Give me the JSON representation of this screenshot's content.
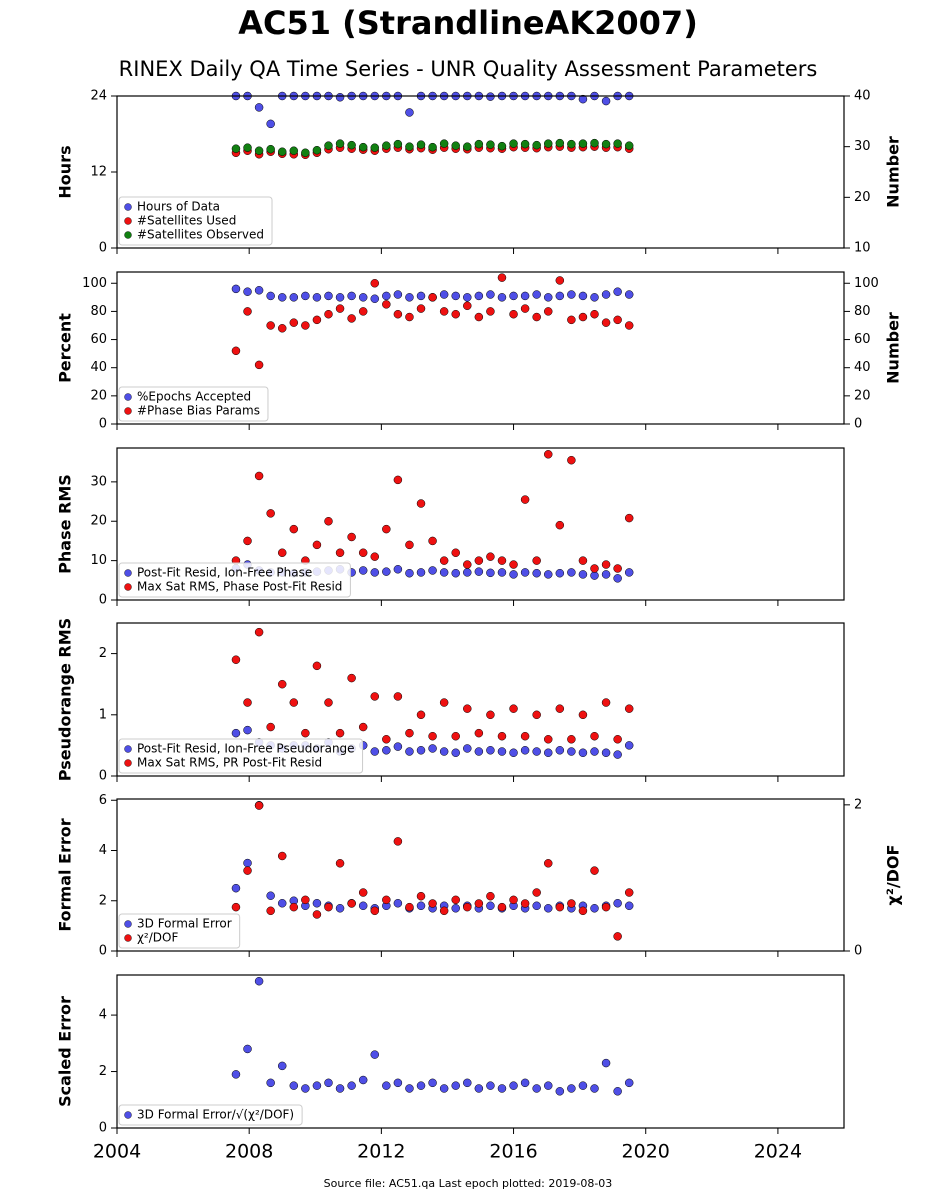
{
  "title": "AC51 (StrandlineAK2007)",
  "subtitle": "RINEX Daily QA Time Series - UNR Quality Assessment Parameters",
  "source": "Source file: AC51.qa Last epoch plotted: 2019-08-03",
  "chart_data": [
    {
      "type": "scatter",
      "ylabel": "Hours",
      "y2label": "Number",
      "legend": "lower left",
      "xlim": [
        2004,
        2026
      ],
      "xticks": [
        2004,
        2008,
        2012,
        2016,
        2020,
        2024
      ],
      "ylim": [
        0,
        24
      ],
      "yticks": [
        0,
        12,
        24
      ],
      "y2lim": [
        10,
        40
      ],
      "y2ticks": [
        10,
        20,
        30,
        40
      ],
      "x": [
        2007.6,
        2007.95,
        2008.3,
        2008.65,
        2009.0,
        2009.35,
        2009.7,
        2010.05,
        2010.4,
        2010.75,
        2011.1,
        2011.45,
        2011.8,
        2012.15,
        2012.5,
        2012.85,
        2013.2,
        2013.55,
        2013.9,
        2014.25,
        2014.6,
        2014.95,
        2015.3,
        2015.65,
        2016.0,
        2016.35,
        2016.7,
        2017.05,
        2017.4,
        2017.75,
        2018.1,
        2018.45,
        2018.8,
        2019.15,
        2019.5
      ],
      "series": [
        {
          "name": "Hours of Data",
          "color": "#4f4fe6",
          "values": [
            24,
            24,
            22.2,
            19.6,
            24,
            24,
            24,
            24,
            24,
            23.8,
            24,
            24,
            24,
            24,
            24,
            21.4,
            24,
            24,
            24,
            24,
            24,
            24,
            23.9,
            24,
            24,
            24,
            24,
            24,
            24,
            24,
            23.5,
            24,
            23.2,
            24,
            24
          ]
        },
        {
          "name": "#Satellites Used",
          "color": "#ee1111",
          "axis": "y2",
          "values": [
            28.8,
            29.2,
            28.5,
            29.0,
            28.6,
            28.5,
            28.4,
            28.8,
            29.5,
            29.8,
            29.6,
            29.4,
            29.2,
            29.6,
            29.8,
            29.5,
            29.7,
            29.4,
            29.8,
            29.6,
            29.5,
            29.8,
            29.7,
            29.6,
            29.9,
            29.8,
            29.7,
            29.9,
            30.0,
            29.8,
            29.9,
            30.0,
            29.8,
            29.9,
            29.6
          ]
        },
        {
          "name": "#Satellites Observed",
          "color": "#128012",
          "axis": "y2",
          "values": [
            29.6,
            29.8,
            29.2,
            29.5,
            29.0,
            29.2,
            28.8,
            29.3,
            30.2,
            30.6,
            30.3,
            29.9,
            29.8,
            30.2,
            30.5,
            30.0,
            30.4,
            29.9,
            30.6,
            30.2,
            30.0,
            30.5,
            30.4,
            30.1,
            30.6,
            30.5,
            30.3,
            30.6,
            30.7,
            30.5,
            30.6,
            30.7,
            30.5,
            30.6,
            30.2
          ]
        }
      ]
    },
    {
      "type": "scatter",
      "ylabel": "Percent",
      "y2label": "Number",
      "legend": "lower left",
      "xlim": [
        2004,
        2026
      ],
      "xticks": [
        2004,
        2008,
        2012,
        2016,
        2020,
        2024
      ],
      "ylim": [
        0,
        108
      ],
      "yticks": [
        0,
        20,
        40,
        60,
        80,
        100
      ],
      "y2lim": [
        0,
        108
      ],
      "y2ticks": [
        0,
        20,
        40,
        60,
        80,
        100
      ],
      "x": [
        2007.6,
        2007.95,
        2008.3,
        2008.65,
        2009.0,
        2009.35,
        2009.7,
        2010.05,
        2010.4,
        2010.75,
        2011.1,
        2011.45,
        2011.8,
        2012.15,
        2012.5,
        2012.85,
        2013.2,
        2013.55,
        2013.9,
        2014.25,
        2014.6,
        2014.95,
        2015.3,
        2015.65,
        2016.0,
        2016.35,
        2016.7,
        2017.05,
        2017.4,
        2017.75,
        2018.1,
        2018.45,
        2018.8,
        2019.15,
        2019.5
      ],
      "series": [
        {
          "name": "%Epochs Accepted",
          "color": "#4f4fe6",
          "values": [
            96,
            94,
            95,
            91,
            90,
            90,
            91,
            90,
            91,
            90,
            91,
            90,
            89,
            91,
            92,
            90,
            91,
            90,
            92,
            91,
            90,
            91,
            92,
            90,
            91,
            91,
            92,
            90,
            91,
            92,
            91,
            90,
            92,
            94,
            92
          ]
        },
        {
          "name": "#Phase Bias Params",
          "color": "#ee1111",
          "axis": "y2",
          "values": [
            52,
            80,
            42,
            70,
            68,
            72,
            70,
            74,
            78,
            82,
            75,
            80,
            100,
            85,
            78,
            76,
            82,
            90,
            80,
            78,
            84,
            76,
            80,
            104,
            78,
            82,
            76,
            80,
            102,
            74,
            76,
            78,
            72,
            74,
            70
          ]
        }
      ]
    },
    {
      "type": "scatter",
      "ylabel": "Phase RMS",
      "legend": "lower left",
      "xlim": [
        2004,
        2026
      ],
      "xticks": [
        2004,
        2008,
        2012,
        2016,
        2020,
        2024
      ],
      "ylim": [
        0,
        38.6
      ],
      "yticks": [
        0,
        10,
        20,
        30
      ],
      "x": [
        2007.6,
        2007.95,
        2008.3,
        2008.65,
        2009.0,
        2009.35,
        2009.7,
        2010.05,
        2010.4,
        2010.75,
        2011.1,
        2011.45,
        2011.8,
        2012.15,
        2012.5,
        2012.85,
        2013.2,
        2013.55,
        2013.9,
        2014.25,
        2014.6,
        2014.95,
        2015.3,
        2015.65,
        2016.0,
        2016.35,
        2016.7,
        2017.05,
        2017.4,
        2017.75,
        2018.1,
        2018.45,
        2018.8,
        2019.15,
        2019.5
      ],
      "series": [
        {
          "name": "Post-Fit Resid, Ion-Free Phase",
          "color": "#4f4fe6",
          "values": [
            8,
            9,
            7.5,
            7,
            7,
            6.8,
            7,
            7.2,
            7.5,
            7.8,
            7,
            7.5,
            7,
            7.2,
            7.8,
            6.8,
            7,
            7.5,
            7,
            6.8,
            7,
            7.2,
            6.9,
            7,
            6.5,
            7,
            6.8,
            6.5,
            6.8,
            7,
            6.5,
            6.2,
            6.5,
            5.5,
            7
          ]
        },
        {
          "name": "Max Sat RMS, Phase Post-Fit Resid",
          "color": "#ee1111",
          "values": [
            10,
            15,
            31.5,
            22,
            12,
            18,
            10,
            14,
            20,
            12,
            16,
            12,
            11,
            18,
            30.5,
            14,
            24.5,
            15,
            10,
            12,
            9,
            10,
            11,
            10,
            9,
            25.5,
            10,
            37,
            19,
            35.5,
            10,
            8,
            9,
            8,
            20.8
          ]
        }
      ]
    },
    {
      "type": "scatter",
      "ylabel": "Pseudorange RMS",
      "legend": "lower left",
      "xlim": [
        2004,
        2026
      ],
      "xticks": [
        2004,
        2008,
        2012,
        2016,
        2020,
        2024
      ],
      "ylim": [
        0,
        2.5
      ],
      "yticks": [
        0,
        1,
        2
      ],
      "x": [
        2007.6,
        2007.95,
        2008.3,
        2008.65,
        2009.0,
        2009.35,
        2009.7,
        2010.05,
        2010.4,
        2010.75,
        2011.1,
        2011.45,
        2011.8,
        2012.15,
        2012.5,
        2012.85,
        2013.2,
        2013.55,
        2013.9,
        2014.25,
        2014.6,
        2014.95,
        2015.3,
        2015.65,
        2016.0,
        2016.35,
        2016.7,
        2017.05,
        2017.4,
        2017.75,
        2018.1,
        2018.45,
        2018.8,
        2019.15,
        2019.5
      ],
      "series": [
        {
          "name": "Post-Fit Resid, Ion-Free Pseudorange",
          "color": "#4f4fe6",
          "values": [
            0.7,
            0.75,
            0.55,
            0.5,
            0.45,
            0.5,
            0.5,
            0.45,
            0.55,
            0.4,
            0.45,
            0.5,
            0.4,
            0.42,
            0.48,
            0.4,
            0.42,
            0.45,
            0.4,
            0.38,
            0.45,
            0.4,
            0.42,
            0.4,
            0.38,
            0.42,
            0.4,
            0.38,
            0.42,
            0.4,
            0.38,
            0.4,
            0.38,
            0.35,
            0.5
          ]
        },
        {
          "name": "Max Sat RMS, PR Post-Fit Resid",
          "color": "#ee1111",
          "values": [
            1.9,
            1.2,
            2.35,
            0.8,
            1.5,
            1.2,
            0.7,
            1.8,
            1.2,
            0.7,
            1.6,
            0.8,
            1.3,
            0.6,
            1.3,
            0.7,
            1.0,
            0.65,
            1.2,
            0.65,
            1.1,
            0.7,
            1.0,
            0.65,
            1.1,
            0.65,
            1.0,
            0.6,
            1.1,
            0.6,
            1.0,
            0.65,
            1.2,
            0.6,
            1.1
          ]
        }
      ]
    },
    {
      "type": "scatter",
      "ylabel": "Formal Error",
      "y2label": "χ²/DOF",
      "legend": "lower left",
      "xlim": [
        2004,
        2026
      ],
      "xticks": [
        2004,
        2008,
        2012,
        2016,
        2020,
        2024
      ],
      "ylim": [
        0,
        6.05
      ],
      "yticks": [
        0,
        2,
        4,
        6
      ],
      "y2lim": [
        0,
        2.08
      ],
      "y2ticks": [
        0,
        2
      ],
      "x": [
        2007.6,
        2007.95,
        2008.3,
        2008.65,
        2009.0,
        2009.35,
        2009.7,
        2010.05,
        2010.4,
        2010.75,
        2011.1,
        2011.45,
        2011.8,
        2012.15,
        2012.5,
        2012.85,
        2013.2,
        2013.55,
        2013.9,
        2014.25,
        2014.6,
        2014.95,
        2015.3,
        2015.65,
        2016.0,
        2016.35,
        2016.7,
        2017.05,
        2017.4,
        2017.75,
        2018.1,
        2018.45,
        2018.8,
        2019.15,
        2019.5
      ],
      "series": [
        {
          "name": "3D Formal Error",
          "color": "#4f4fe6",
          "values": [
            2.5,
            3.5,
            5.8,
            2.2,
            1.9,
            2.0,
            1.8,
            1.9,
            1.8,
            1.7,
            1.9,
            1.8,
            1.7,
            1.8,
            1.9,
            1.7,
            1.8,
            1.7,
            1.8,
            1.7,
            1.8,
            1.7,
            1.8,
            1.7,
            1.8,
            1.7,
            1.8,
            1.7,
            1.8,
            1.7,
            1.8,
            1.7,
            1.8,
            1.9,
            1.8
          ]
        },
        {
          "name": "χ²/DOF",
          "color": "#ee1111",
          "axis": "y2",
          "values": [
            0.6,
            1.1,
            1.99,
            0.55,
            1.3,
            0.6,
            0.7,
            0.5,
            0.6,
            1.2,
            0.65,
            0.8,
            0.55,
            0.7,
            1.5,
            0.6,
            0.75,
            0.65,
            0.55,
            0.7,
            0.6,
            0.65,
            0.75,
            0.6,
            0.7,
            0.65,
            0.8,
            1.2,
            0.6,
            0.65,
            0.55,
            1.1,
            0.6,
            0.2,
            0.8
          ]
        }
      ]
    },
    {
      "type": "scatter",
      "ylabel": "Scaled Error",
      "legend": "lower left",
      "xlim": [
        2004,
        2026
      ],
      "xticks": [
        2004,
        2008,
        2012,
        2016,
        2020,
        2024
      ],
      "ylim": [
        0,
        5.42
      ],
      "yticks": [
        0,
        2,
        4
      ],
      "x": [
        2007.6,
        2007.95,
        2008.3,
        2008.65,
        2009.0,
        2009.35,
        2009.7,
        2010.05,
        2010.4,
        2010.75,
        2011.1,
        2011.45,
        2011.8,
        2012.15,
        2012.5,
        2012.85,
        2013.2,
        2013.55,
        2013.9,
        2014.25,
        2014.6,
        2014.95,
        2015.3,
        2015.65,
        2016.0,
        2016.35,
        2016.7,
        2017.05,
        2017.4,
        2017.75,
        2018.1,
        2018.45,
        2018.8,
        2019.15,
        2019.5
      ],
      "series": [
        {
          "name": "3D Formal Error/√(χ²/DOF)",
          "color": "#4f4fe6",
          "values": [
            1.9,
            2.8,
            5.2,
            1.6,
            2.2,
            1.5,
            1.4,
            1.5,
            1.6,
            1.4,
            1.5,
            1.7,
            2.6,
            1.5,
            1.6,
            1.4,
            1.5,
            1.6,
            1.4,
            1.5,
            1.6,
            1.4,
            1.5,
            1.4,
            1.5,
            1.6,
            1.4,
            1.5,
            1.3,
            1.4,
            1.5,
            1.4,
            2.3,
            1.3,
            1.6
          ]
        }
      ]
    }
  ]
}
